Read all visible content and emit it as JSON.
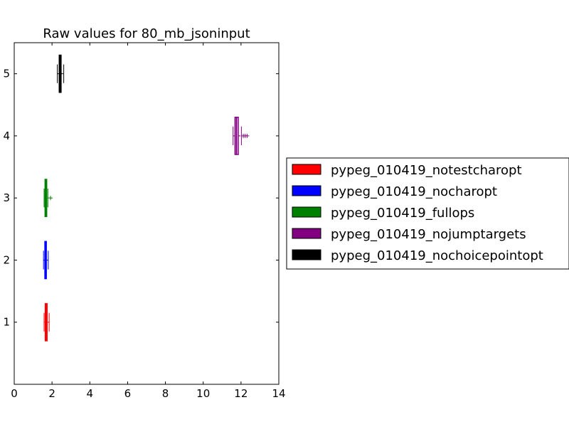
{
  "chart_data": {
    "type": "boxplot",
    "title": "Raw values for 80_mb_jsoninput",
    "xlabel": "",
    "ylabel": "",
    "xlim": [
      0,
      14
    ],
    "ylim": [
      0,
      5.5
    ],
    "x_ticks": [
      0,
      2,
      4,
      6,
      8,
      10,
      12,
      14
    ],
    "y_ticks": [
      1,
      2,
      3,
      4,
      5
    ],
    "grid": false,
    "legend_position": "right",
    "series": [
      {
        "name": "pypeg_010419_notestcharopt",
        "color": "#ff0000",
        "position": 1,
        "whislo": 1.58,
        "q1": 1.64,
        "med": 1.68,
        "q3": 1.74,
        "whishi": 1.85,
        "fliers": []
      },
      {
        "name": "pypeg_010419_nocharopt",
        "color": "#0000ff",
        "position": 2,
        "whislo": 1.55,
        "q1": 1.62,
        "med": 1.65,
        "q3": 1.7,
        "whishi": 1.8,
        "fliers": []
      },
      {
        "name": "pypeg_010419_fullops",
        "color": "#008000",
        "position": 3,
        "whislo": 1.58,
        "q1": 1.63,
        "med": 1.67,
        "q3": 1.72,
        "whishi": 1.78,
        "fliers": [
          1.92
        ]
      },
      {
        "name": "pypeg_010419_nojumptargets",
        "color": "#800080",
        "position": 4,
        "whislo": 11.58,
        "q1": 11.68,
        "med": 11.76,
        "q3": 11.86,
        "whishi": 12.02,
        "fliers": [
          12.12,
          12.22,
          12.32
        ]
      },
      {
        "name": "pypeg_010419_nochoicepointopt",
        "color": "#000000",
        "position": 5,
        "whislo": 2.28,
        "q1": 2.38,
        "med": 2.42,
        "q3": 2.48,
        "whishi": 2.62,
        "fliers": []
      }
    ]
  }
}
